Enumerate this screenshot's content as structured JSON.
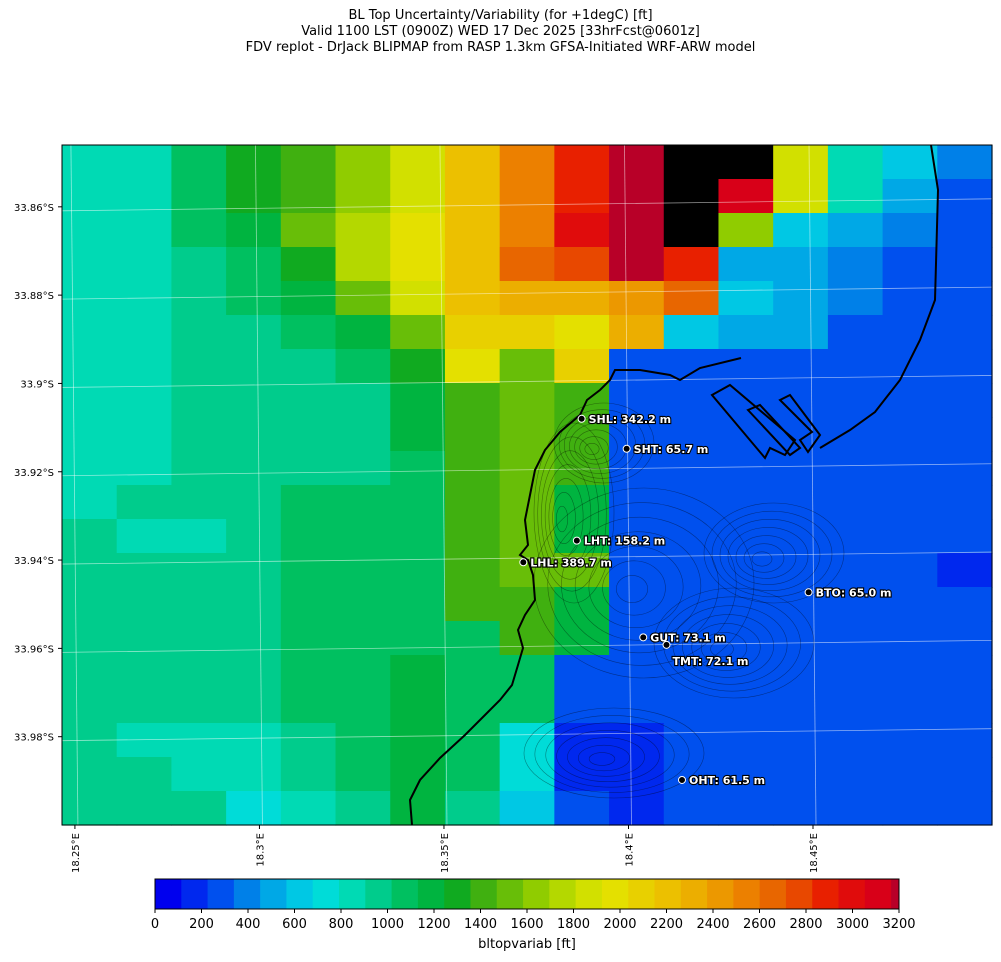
{
  "title": {
    "line1": "BL Top Uncertainty/Variability (for +1degC) [ft]",
    "line2": "Valid 1100 LST (0900Z) WED 17 Dec 2025 [33hrFcst@0601z]",
    "line3": "FDV replot - DrJack BLIPMAP from RASP 1.3km GFSA-Initiated WRF-ARW model"
  },
  "map": {
    "lon_range": [
      18.2465,
      18.4985
    ],
    "lat_range": [
      -34.0,
      -33.846
    ],
    "lat_ticks": [
      {
        "value": -33.86,
        "label": "33.86°S"
      },
      {
        "value": -33.88,
        "label": "33.88°S"
      },
      {
        "value": -33.9,
        "label": "33.9°S"
      },
      {
        "value": -33.92,
        "label": "33.92°S"
      },
      {
        "value": -33.94,
        "label": "33.94°S"
      },
      {
        "value": -33.96,
        "label": "33.96°S"
      },
      {
        "value": -33.98,
        "label": "33.98°S"
      }
    ],
    "lon_ticks": [
      {
        "value": 18.25,
        "label": "18.25°E"
      },
      {
        "value": 18.3,
        "label": "18.3°E"
      },
      {
        "value": 18.35,
        "label": "18.35°E"
      },
      {
        "value": 18.4,
        "label": "18.4°E"
      },
      {
        "value": 18.45,
        "label": "18.45°E"
      }
    ],
    "grid": [
      [
        7,
        7,
        9,
        11,
        12,
        14,
        16,
        19,
        22,
        25,
        28,
        31,
        32,
        16,
        7,
        5,
        3
      ],
      [
        7,
        7,
        9,
        11,
        12,
        14,
        16,
        19,
        22,
        25,
        28,
        31,
        27,
        16,
        7,
        4,
        2
      ],
      [
        7,
        7,
        9,
        10,
        13,
        15,
        17,
        19,
        22,
        26,
        28,
        31,
        14,
        5,
        4,
        3,
        2
      ],
      [
        7,
        7,
        8,
        9,
        11,
        15,
        17,
        19,
        23,
        24,
        28,
        25,
        4,
        4,
        3,
        2,
        2
      ],
      [
        7,
        7,
        8,
        9,
        10,
        13,
        16,
        19,
        20,
        20,
        21,
        23,
        5,
        4,
        3,
        2,
        2
      ],
      [
        7,
        7,
        8,
        8,
        9,
        10,
        13,
        18,
        18,
        17,
        20,
        5,
        4,
        4,
        2,
        2,
        2
      ],
      [
        7,
        7,
        8,
        8,
        8,
        9,
        11,
        17,
        13,
        18,
        2,
        2,
        2,
        2,
        2,
        2,
        2
      ],
      [
        7,
        7,
        8,
        8,
        8,
        8,
        10,
        12,
        13,
        12,
        2,
        2,
        2,
        2,
        2,
        2,
        2
      ],
      [
        7,
        7,
        8,
        8,
        8,
        8,
        10,
        12,
        13,
        12,
        2,
        2,
        2,
        2,
        2,
        2,
        2
      ],
      [
        7,
        7,
        8,
        8,
        8,
        8,
        9,
        12,
        13,
        12,
        2,
        2,
        2,
        2,
        2,
        2,
        2
      ],
      [
        7,
        8,
        8,
        8,
        9,
        9,
        9,
        12,
        13,
        10,
        2,
        2,
        2,
        2,
        2,
        2,
        2
      ],
      [
        8,
        7,
        7,
        8,
        9,
        9,
        9,
        12,
        13,
        10,
        2,
        2,
        2,
        2,
        2,
        2,
        2
      ],
      [
        8,
        8,
        8,
        8,
        9,
        9,
        9,
        12,
        13,
        13,
        2,
        2,
        2,
        2,
        2,
        2,
        1
      ],
      [
        8,
        8,
        8,
        8,
        9,
        9,
        9,
        12,
        12,
        10,
        2,
        2,
        2,
        2,
        2,
        2,
        2
      ],
      [
        8,
        8,
        8,
        8,
        9,
        9,
        9,
        9,
        12,
        10,
        2,
        2,
        2,
        2,
        2,
        2,
        2
      ],
      [
        8,
        8,
        8,
        8,
        9,
        9,
        10,
        9,
        9,
        2,
        2,
        2,
        2,
        2,
        2,
        2,
        2
      ],
      [
        8,
        8,
        8,
        8,
        9,
        9,
        10,
        9,
        9,
        2,
        2,
        2,
        2,
        2,
        2,
        2,
        2
      ],
      [
        8,
        7,
        7,
        7,
        8,
        9,
        10,
        9,
        6,
        1,
        1,
        2,
        2,
        2,
        2,
        2,
        2
      ],
      [
        8,
        8,
        7,
        7,
        8,
        9,
        10,
        9,
        6,
        1,
        1,
        2,
        2,
        2,
        2,
        2,
        2
      ],
      [
        8,
        8,
        8,
        6,
        7,
        8,
        10,
        8,
        5,
        2,
        1,
        2,
        2,
        2,
        2,
        2,
        2
      ]
    ],
    "stations": [
      {
        "id": "SHL",
        "label": "SHL: 342.2 m",
        "lon": 18.3873,
        "lat": -33.908
      },
      {
        "id": "SHT",
        "label": "SHT: 65.7 m",
        "lon": 18.3995,
        "lat": -33.9148
      },
      {
        "id": "LHT",
        "label": "LHT: 158.2 m",
        "lon": 18.386,
        "lat": -33.9356
      },
      {
        "id": "LHL",
        "label": "LHL: 389.7 m",
        "lon": 18.3715,
        "lat": -33.9405
      },
      {
        "id": "BTO",
        "label": "BTO: 65.0 m",
        "lon": 18.4488,
        "lat": -33.9473
      },
      {
        "id": "GUT",
        "label": "GUT: 73.1 m",
        "lon": 18.404,
        "lat": -33.9575
      },
      {
        "id": "TMT",
        "label": "TMT: 72.1 m",
        "lon": 18.4103,
        "lat": -33.9592
      },
      {
        "id": "OHT",
        "label": "OHT: 61.5 m",
        "lon": 18.4145,
        "lat": -33.9898
      }
    ]
  },
  "colorbar": {
    "label": "bltopvariab [ft]",
    "min": 0,
    "max": 3200,
    "tick_labels": [
      "0",
      "200",
      "400",
      "600",
      "800",
      "1000",
      "1200",
      "1400",
      "1600",
      "1800",
      "2000",
      "2200",
      "2400",
      "2600",
      "2800",
      "3000",
      "3200"
    ],
    "colors": [
      "#0000ee",
      "#0028ee",
      "#0050ee",
      "#0080e8",
      "#00a8e6",
      "#00c8e4",
      "#00dcd8",
      "#00dab4",
      "#00cc8c",
      "#00c060",
      "#00b440",
      "#10aa20",
      "#40b010",
      "#68be08",
      "#90cc00",
      "#b4d800",
      "#d2e000",
      "#e4e000",
      "#e8d000",
      "#ecc000",
      "#ecae00",
      "#ec9800",
      "#ec8000",
      "#e86600",
      "#e84800",
      "#e82000",
      "#e00c0c",
      "#d80018",
      "#b80028"
    ]
  }
}
